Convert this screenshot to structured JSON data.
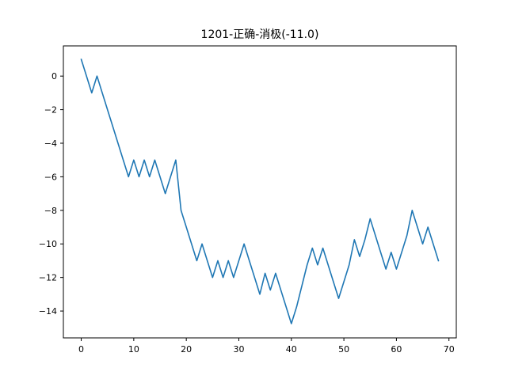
{
  "chart_data": {
    "type": "line",
    "title": "1201-正确-消极(-11.0)",
    "xlabel": "",
    "ylabel": "",
    "xlim": [
      -3.4,
      71.4
    ],
    "ylim": [
      -15.6,
      1.8
    ],
    "xticks": [
      0,
      10,
      20,
      30,
      40,
      50,
      60,
      70
    ],
    "yticks": [
      0,
      -2,
      -4,
      -6,
      -8,
      -10,
      -12,
      -14
    ],
    "ytick_labels": [
      "0",
      "−2",
      "−4",
      "−6",
      "−8",
      "−10",
      "−12",
      "−14"
    ],
    "grid": false,
    "line_color": "#1f77b4",
    "series": [
      {
        "x": [
          0,
          1,
          2,
          3,
          4,
          5,
          6,
          7,
          8,
          9,
          10,
          11,
          12,
          13,
          14,
          15,
          16,
          17,
          18,
          19,
          20,
          21,
          22,
          23,
          24,
          25,
          26,
          27,
          28,
          29,
          30,
          31,
          32,
          33,
          34,
          35,
          36,
          37,
          38,
          39,
          40,
          41,
          42,
          43,
          44,
          45,
          46,
          47,
          48,
          49,
          50,
          51,
          52,
          53,
          54,
          55,
          56,
          57,
          58,
          59,
          60,
          61,
          62,
          63,
          64,
          65,
          66,
          67,
          68
        ],
        "values": [
          1.0,
          0.0,
          -1.0,
          0.0,
          -1.0,
          -2.0,
          -3.0,
          -4.0,
          -5.0,
          -6.0,
          -5.0,
          -6.0,
          -5.0,
          -6.0,
          -5.0,
          -6.0,
          -7.0,
          -6.0,
          -5.0,
          -8.0,
          -9.0,
          -10.0,
          -11.0,
          -10.0,
          -11.0,
          -12.0,
          -11.0,
          -12.0,
          -11.0,
          -12.0,
          -11.0,
          -10.0,
          -11.0,
          -12.0,
          -13.0,
          -11.75,
          -12.75,
          -11.75,
          -12.75,
          -13.75,
          -14.75,
          -13.75,
          -12.5,
          -11.25,
          -10.25,
          -11.25,
          -10.25,
          -11.25,
          -12.25,
          -13.25,
          -12.25,
          -11.25,
          -9.75,
          -10.75,
          -9.75,
          -8.5,
          -9.5,
          -10.5,
          -11.5,
          -10.5,
          -11.5,
          -10.5,
          -9.5,
          -8.0,
          -9.0,
          -10.0,
          -9.0,
          -10.0,
          -11.0
        ]
      }
    ]
  }
}
